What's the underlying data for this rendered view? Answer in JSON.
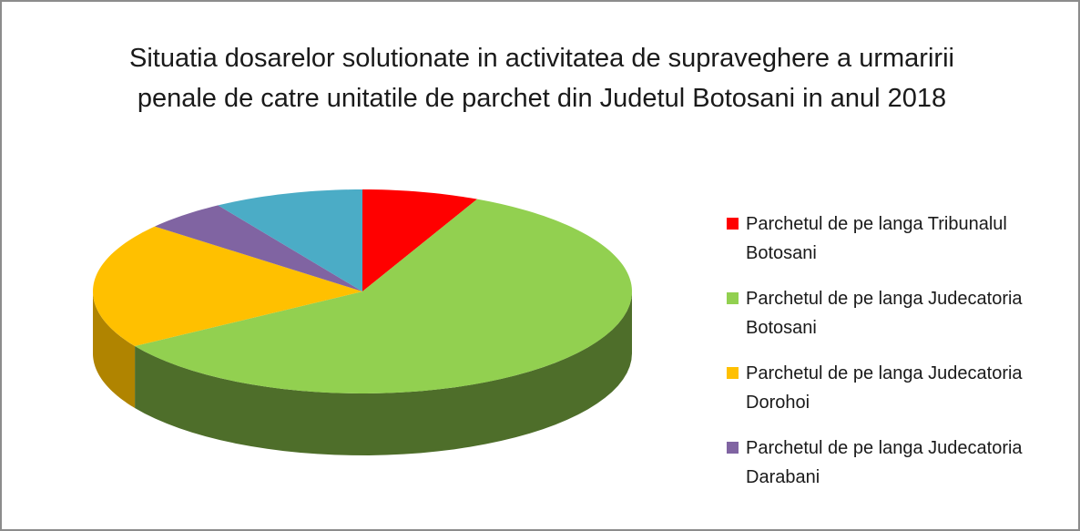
{
  "chart_data": {
    "type": "pie3d",
    "title": "Situatia dosarelor solutionate in activitatea de supraveghere a urmaririi penale de catre unitatile de parchet din Judetul Botosani in anul 2018",
    "categories": [
      "Parchetul de pe langa Tribunalul Botosani",
      "Parchetul de pe langa Judecatoria Botosani",
      "Parchetul de pe langa Judecatoria Dorohoi",
      "Parchetul de pe langa Judecatoria Darabani",
      null
    ],
    "values": [
      7,
      59,
      20,
      5,
      9
    ],
    "colors": [
      "#ff0000",
      "#92d050",
      "#ffc000",
      "#8064a2",
      "#4bacc6"
    ],
    "side_colors": [
      "#b00000",
      "#4e6e2a",
      "#b08400",
      "#574470",
      "#31788b"
    ],
    "legend": "right"
  }
}
